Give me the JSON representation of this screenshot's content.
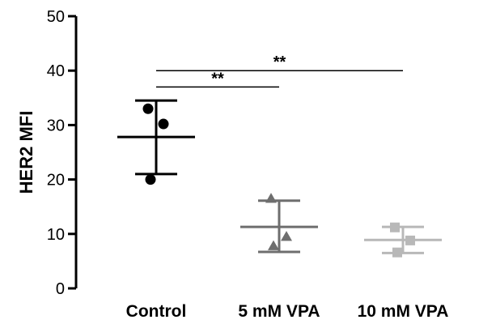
{
  "chart_data": {
    "type": "scatter",
    "ylabel": "HER2 MFI",
    "ylim": [
      0,
      50
    ],
    "yticks": [
      0,
      10,
      20,
      30,
      40,
      50
    ],
    "categories": [
      "Control",
      "5 mM VPA",
      "10 mM VPA"
    ],
    "series": [
      {
        "category": "Control",
        "marker": "circle",
        "color": "#000000",
        "points": [
          33,
          30.2,
          20
        ],
        "mean": 27.8,
        "sd_upper": 34.5,
        "sd_lower": 21
      },
      {
        "category": "5 mM VPA",
        "marker": "triangle",
        "color": "#6e6e6e",
        "points": [
          16.5,
          9.5,
          7.8
        ],
        "mean": 11.3,
        "sd_upper": 16.1,
        "sd_lower": 6.7
      },
      {
        "category": "10 mM VPA",
        "marker": "square",
        "color": "#b8b8b8",
        "points": [
          11.2,
          8.8,
          6.6
        ],
        "mean": 8.9,
        "sd_upper": 11.3,
        "sd_lower": 6.5
      }
    ],
    "significance": [
      {
        "from": "Control",
        "to": "5 mM VPA",
        "y": 37,
        "label": "**"
      },
      {
        "from": "Control",
        "to": "10 mM VPA",
        "y": 40,
        "label": "**"
      }
    ]
  }
}
